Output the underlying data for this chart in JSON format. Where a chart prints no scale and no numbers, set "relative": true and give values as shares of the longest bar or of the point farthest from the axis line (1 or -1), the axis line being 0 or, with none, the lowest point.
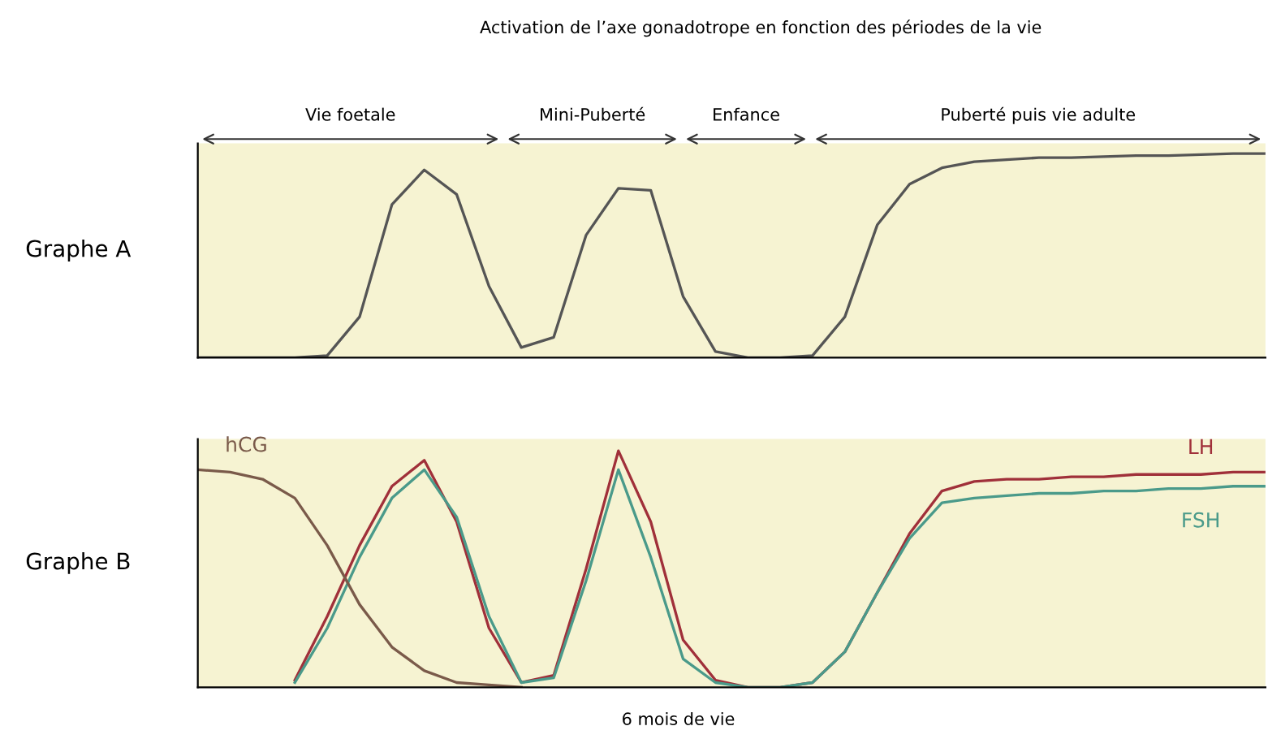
{
  "chart_data": [
    {
      "type": "line",
      "relative": true,
      "title": "Activation de l’axe gonadotrope en fonction des périodes de la vie",
      "ylabel": "Graphe A",
      "annotations": [
        "Vie foetale",
        "Mini-Puberté",
        "Enfance",
        "Puberté puis vie adulte"
      ],
      "categories": [
        null,
        null,
        null,
        null,
        null,
        null,
        null,
        null,
        null,
        null,
        null,
        null,
        null,
        null,
        null,
        null,
        null,
        null,
        null,
        null,
        null,
        null,
        null,
        null,
        null,
        null,
        null,
        null,
        null,
        null,
        null,
        null,
        null,
        null
      ],
      "series": [
        {
          "color": "#555555",
          "values": [
            0,
            0,
            0,
            0,
            0.01,
            0.2,
            0.75,
            0.92,
            0.8,
            0.35,
            0.05,
            0.1,
            0.6,
            0.83,
            0.82,
            0.3,
            0.03,
            0,
            0,
            0.01,
            0.2,
            0.65,
            0.85,
            0.93,
            0.96,
            0.97,
            0.98,
            0.98,
            0.985,
            0.99,
            0.99,
            0.995,
            1,
            1
          ]
        }
      ],
      "legend": false,
      "grid": false
    },
    {
      "type": "line",
      "relative": true,
      "ylabel": "Graphe B",
      "annotations": [
        "6 mois de vie"
      ],
      "categories": [
        null,
        null,
        null,
        null,
        null,
        null,
        null,
        null,
        null,
        null,
        null,
        null,
        null,
        null,
        null,
        null,
        null,
        null,
        null,
        null,
        null,
        null,
        null,
        null,
        null,
        null,
        null,
        null,
        null,
        null,
        null,
        null,
        null,
        null
      ],
      "series": [
        {
          "name": "LH",
          "color": "#a0303a",
          "values": [
            null,
            null,
            null,
            0.03,
            0.3,
            0.6,
            0.85,
            0.96,
            0.7,
            0.25,
            0.02,
            0.05,
            0.5,
            1,
            0.7,
            0.2,
            0.03,
            0,
            0,
            0.02,
            0.15,
            0.4,
            0.65,
            0.83,
            0.87,
            0.88,
            0.88,
            0.89,
            0.89,
            0.9,
            0.9,
            0.9,
            0.91,
            0.91
          ]
        },
        {
          "name": "FSH",
          "color": "#4a9a8a",
          "values": [
            null,
            null,
            null,
            0.02,
            0.25,
            0.55,
            0.8,
            0.92,
            0.72,
            0.3,
            0.02,
            0.04,
            0.45,
            0.92,
            0.55,
            0.12,
            0.02,
            0,
            0,
            0.02,
            0.15,
            0.4,
            0.63,
            0.78,
            0.8,
            0.81,
            0.82,
            0.82,
            0.83,
            0.83,
            0.84,
            0.84,
            0.85,
            0.85
          ]
        },
        {
          "name": "hCG",
          "color": "#7a5a4a",
          "values": [
            0.92,
            0.91,
            0.88,
            0.8,
            0.6,
            0.35,
            0.17,
            0.07,
            0.02,
            0.01,
            0,
            null,
            null,
            null,
            null,
            null,
            null,
            null,
            null,
            null,
            null,
            null,
            null,
            null,
            null,
            null,
            null,
            null,
            null,
            null,
            null,
            null,
            null,
            null
          ]
        }
      ],
      "legend": false,
      "grid": false
    }
  ]
}
